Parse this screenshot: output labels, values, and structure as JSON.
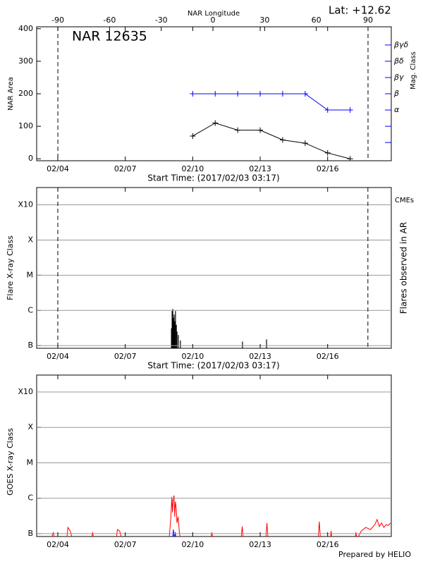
{
  "chart_data": [
    {
      "type": "line",
      "annotation": "NAR 12635",
      "latitude_label": "Lat: +12.62",
      "x2label": "NAR Longitude",
      "xlabel": "Start Time: (2017/02/03 03:17)",
      "ylabel": "NAR Area",
      "y2label": "Mag. Class",
      "y2_color": "#0000ff",
      "marker": "+",
      "x": [
        10,
        11,
        12,
        13,
        14,
        15,
        16,
        17
      ],
      "series": [
        {
          "color": "#000000",
          "values": [
            70,
            110,
            88,
            88,
            58,
            48,
            18,
            0
          ]
        },
        {
          "color": "#0000ff",
          "axis": "y2",
          "values": [
            200,
            200,
            200,
            200,
            200,
            200,
            150,
            150
          ]
        }
      ],
      "xlim": [
        3.06,
        18.83
      ],
      "xticks": [
        {
          "value": 4,
          "label": "02/04"
        },
        {
          "value": 7,
          "label": "02/07"
        },
        {
          "value": 10,
          "label": "02/10"
        },
        {
          "value": 13,
          "label": "02/13"
        },
        {
          "value": 16,
          "label": "02/16"
        }
      ],
      "x2lim": [
        -102.3,
        103.5
      ],
      "x2ticks": [
        -90,
        -60,
        -30,
        0,
        30,
        60,
        90
      ],
      "x2vlines": [
        -90,
        90
      ],
      "ylim": [
        -6,
        406
      ],
      "yticks": [
        0,
        100,
        200,
        300,
        400
      ],
      "y2lim": [
        -6,
        406
      ],
      "y2ticks": [
        {
          "value": 150,
          "label": "α"
        },
        {
          "value": 200,
          "label": "β"
        },
        {
          "value": 250,
          "label": "βγ"
        },
        {
          "value": 300,
          "label": "βδ"
        },
        {
          "value": 350,
          "label": "βγδ"
        }
      ],
      "y2_minor_ticks": [
        50,
        100
      ]
    },
    {
      "type": "bar",
      "xlabel": "Start Time: (2017/02/03 03:17)",
      "ylabel": "Flare X-ray Class",
      "y2label": "Flares observed in AR",
      "cme_label": "CMEs",
      "cme_color": "#ff0000",
      "color": "#000000",
      "log_scale": true,
      "grid": true,
      "x": [
        9.05,
        9.08,
        9.11,
        9.14,
        9.17,
        9.2,
        9.23,
        9.27,
        9.3,
        9.36,
        9.45,
        12.21,
        13.28
      ],
      "values": [
        3.1e-07,
        9.6e-07,
        1.1e-06,
        6.1e-07,
        7.6e-07,
        4.9e-07,
        9.6e-07,
        3.9e-07,
        2.5e-07,
        2e-07,
        1.4e-07,
        1.3e-07,
        1.5e-07
      ],
      "vlines": [
        4.0,
        17.79
      ],
      "xlim": [
        3.06,
        18.83
      ],
      "xticks": [
        {
          "value": 4,
          "label": "02/04"
        },
        {
          "value": 7,
          "label": "02/07"
        },
        {
          "value": 10,
          "label": "02/10"
        },
        {
          "value": 13,
          "label": "02/13"
        },
        {
          "value": 16,
          "label": "02/16"
        }
      ],
      "ylim": [
        8.4e-08,
        0.0031
      ],
      "yticks": [
        {
          "value": 1e-07,
          "label": "B"
        },
        {
          "value": 1e-06,
          "label": "C"
        },
        {
          "value": 1e-05,
          "label": "M"
        },
        {
          "value": 0.0001,
          "label": "X"
        },
        {
          "value": 0.001,
          "label": "X10"
        }
      ]
    },
    {
      "type": "line",
      "ylabel": "GOES X-ray Class",
      "log_scale": true,
      "grid": true,
      "series": [
        {
          "color": "#ff0000",
          "x": [
            3.1,
            3.7,
            3.8,
            3.85,
            4.4,
            4.45,
            4.55,
            4.65,
            5.5,
            5.55,
            5.6,
            6.6,
            6.65,
            6.75,
            6.85,
            8.95,
            9.03,
            9.07,
            9.1,
            9.13,
            9.17,
            9.2,
            9.23,
            9.27,
            9.3,
            9.35,
            9.4,
            9.45,
            10.8,
            10.85,
            10.9,
            12.15,
            12.2,
            12.25,
            13.25,
            13.3,
            13.35,
            15.58,
            15.63,
            15.68,
            16.12,
            16.15,
            16.2,
            17.22,
            17.26,
            17.3,
            17.5,
            17.7,
            17.9,
            18.1,
            18.2,
            18.3,
            18.4,
            18.5,
            18.6,
            18.7,
            18.8
          ],
          "values": [
            7e-08,
            7e-08,
            1.1e-07,
            7e-08,
            7e-08,
            1.5e-07,
            1.2e-07,
            7e-08,
            7e-08,
            1.1e-07,
            7e-08,
            7e-08,
            1.3e-07,
            1.2e-07,
            7e-08,
            7e-08,
            3e-07,
            1.1e-06,
            4e-07,
            9e-07,
            1.2e-06,
            3e-07,
            8e-07,
            5e-07,
            2e-07,
            3e-07,
            1.2e-07,
            7e-08,
            7e-08,
            1.1e-07,
            7e-08,
            7e-08,
            1.6e-07,
            7e-08,
            7e-08,
            2e-07,
            7e-08,
            7e-08,
            2.2e-07,
            7e-08,
            7e-08,
            1.2e-07,
            7e-08,
            7e-08,
            1.1e-07,
            7e-08,
            1.2e-07,
            1.5e-07,
            1.3e-07,
            1.8e-07,
            2.5e-07,
            1.6e-07,
            2e-07,
            1.5e-07,
            1.8e-07,
            1.7e-07,
            2e-07
          ]
        },
        {
          "color": "#0000ff",
          "x": [
            9.1,
            9.14,
            9.18,
            9.22,
            9.26
          ],
          "values": [
            7e-08,
            1.3e-07,
            7e-08,
            1.1e-07,
            7e-08
          ]
        }
      ],
      "xlim": [
        3.06,
        18.83
      ],
      "xticks": [
        {
          "value": 4,
          "label": "02/04"
        },
        {
          "value": 7,
          "label": "02/07"
        },
        {
          "value": 10,
          "label": "02/10"
        },
        {
          "value": 13,
          "label": "02/13"
        },
        {
          "value": 16,
          "label": "02/16"
        }
      ],
      "ylim": [
        8.3e-08,
        0.003
      ],
      "yticks": [
        {
          "value": 1e-07,
          "label": "B"
        },
        {
          "value": 1e-06,
          "label": "C"
        },
        {
          "value": 1e-05,
          "label": "M"
        },
        {
          "value": 0.0001,
          "label": "X"
        },
        {
          "value": 0.001,
          "label": "X10"
        }
      ]
    }
  ],
  "credit": "Prepared by HELIO"
}
